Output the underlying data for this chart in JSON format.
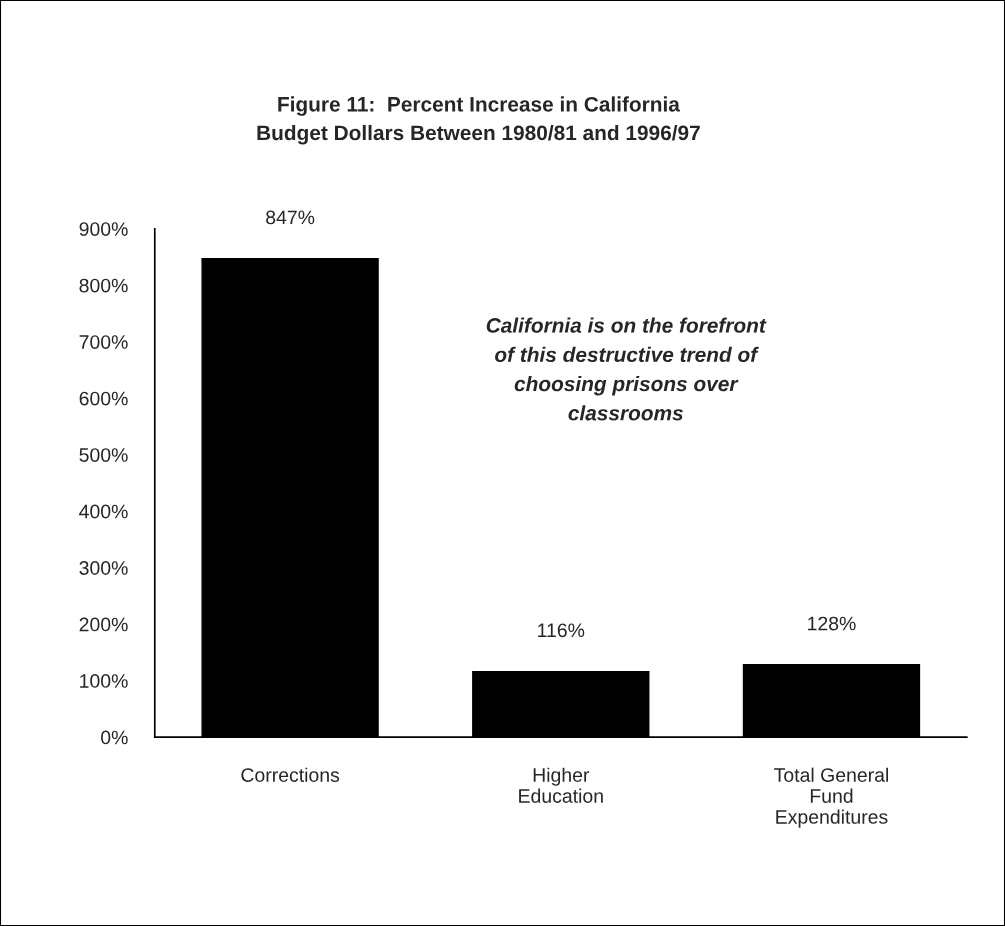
{
  "chart_data": {
    "type": "bar",
    "title": "Figure 11:  Percent Increase in California\nBudget Dollars Between 1980/81 and 1996/97",
    "categories": [
      "Corrections",
      "Higher\nEducation",
      "Total General\nFund\nExpenditures"
    ],
    "values": [
      847,
      116,
      128
    ],
    "color": "#000000",
    "value_labels": [
      "847%",
      "116%",
      "128%"
    ],
    "ylim": [
      0,
      900
    ],
    "yticks": [
      {
        "value": 0,
        "label": "0%"
      },
      {
        "value": 100,
        "label": "100%"
      },
      {
        "value": 200,
        "label": "200%"
      },
      {
        "value": 300,
        "label": "300%"
      },
      {
        "value": 400,
        "label": "400%"
      },
      {
        "value": 500,
        "label": "500%"
      },
      {
        "value": 600,
        "label": "600%"
      },
      {
        "value": 700,
        "label": "700%"
      },
      {
        "value": 800,
        "label": "800%"
      },
      {
        "value": 900,
        "label": "900%"
      }
    ],
    "annotations": [
      "California is on the forefront\nof this destructive trend of\nchoosing prisons over\nclassrooms"
    ]
  }
}
